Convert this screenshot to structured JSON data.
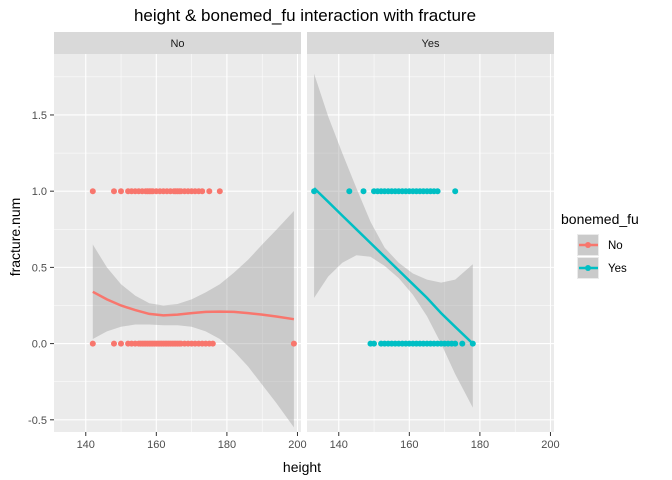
{
  "chart_data": {
    "type": "scatter",
    "title": "height & bonemed_fu  interaction with fracture",
    "xlabel": "height",
    "ylabel": "fracture.num",
    "xlim": [
      131,
      201
    ],
    "ylim": [
      -0.58,
      1.9
    ],
    "x_ticks": [
      140,
      160,
      180,
      200
    ],
    "x_tick_labels": [
      "140",
      "160",
      "180",
      "200"
    ],
    "y_ticks": [
      -0.5,
      0.0,
      0.5,
      1.0,
      1.5
    ],
    "y_tick_labels": [
      "-0.5",
      "0.0",
      "0.5",
      "1.0",
      "1.5"
    ],
    "grid": true,
    "facet_variable": "bonemed_fu",
    "legend": {
      "title": "bonemed_fu",
      "placement": "right",
      "entries": [
        {
          "label": "No",
          "color": "#F8766D"
        },
        {
          "label": "Yes",
          "color": "#00BFC4"
        }
      ]
    },
    "panels": [
      {
        "label": "No",
        "color": "#F8766D",
        "points_y1": [
          142,
          148,
          150,
          152,
          153,
          154,
          155,
          156,
          157,
          157.5,
          158,
          158.5,
          159,
          160,
          161,
          162,
          163,
          164,
          165,
          165.5,
          166,
          166.5,
          167,
          168,
          169,
          170,
          171,
          172,
          173,
          175,
          178
        ],
        "points_y0": [
          142,
          148,
          150,
          152,
          153,
          154,
          155,
          155.5,
          156,
          156.5,
          157,
          157.5,
          158,
          158.5,
          159,
          159.5,
          160,
          160.5,
          161,
          161.5,
          162,
          162.5,
          163,
          163.5,
          164,
          164.5,
          165,
          165.5,
          166,
          166.5,
          167,
          168,
          169,
          170,
          171,
          172,
          173,
          174,
          175,
          176,
          199
        ],
        "smooth": {
          "x": [
            142,
            146,
            150,
            154,
            158,
            162,
            166,
            170,
            174,
            178,
            182,
            186,
            190,
            194,
            199
          ],
          "y": [
            0.34,
            0.29,
            0.25,
            0.22,
            0.195,
            0.185,
            0.19,
            0.2,
            0.208,
            0.21,
            0.208,
            0.2,
            0.19,
            0.178,
            0.16
          ],
          "lower": [
            0.03,
            0.08,
            0.11,
            0.125,
            0.125,
            0.12,
            0.12,
            0.11,
            0.08,
            0.03,
            -0.05,
            -0.15,
            -0.27,
            -0.39,
            -0.55
          ],
          "upper": [
            0.65,
            0.5,
            0.39,
            0.315,
            0.265,
            0.25,
            0.26,
            0.29,
            0.336,
            0.39,
            0.466,
            0.55,
            0.65,
            0.746,
            0.87
          ]
        }
      },
      {
        "label": "Yes",
        "color": "#00BFC4",
        "points_y1": [
          133,
          143,
          147,
          150,
          151,
          152,
          153,
          154,
          155,
          156,
          157,
          158,
          159,
          160,
          161,
          162,
          163,
          164,
          165,
          166,
          167,
          168,
          173
        ],
        "points_y0": [
          149,
          150,
          152,
          153,
          154,
          155,
          156,
          157,
          158,
          159,
          160,
          161,
          162,
          163,
          164,
          165,
          166,
          167,
          168,
          169,
          170,
          171,
          172,
          173,
          175,
          178
        ],
        "smooth": {
          "x": [
            133,
            137,
            141,
            145,
            149,
            153,
            157,
            161,
            165,
            169,
            173,
            178
          ],
          "y": [
            1.02,
            0.93,
            0.84,
            0.75,
            0.66,
            0.57,
            0.48,
            0.39,
            0.3,
            0.2,
            0.11,
            0.0
          ],
          "lower": [
            0.3,
            0.44,
            0.53,
            0.58,
            0.57,
            0.51,
            0.43,
            0.32,
            0.18,
            0.0,
            -0.2,
            -0.42
          ],
          "upper": [
            1.77,
            1.49,
            1.25,
            1.02,
            0.8,
            0.63,
            0.53,
            0.46,
            0.42,
            0.4,
            0.42,
            0.52
          ]
        }
      }
    ]
  }
}
